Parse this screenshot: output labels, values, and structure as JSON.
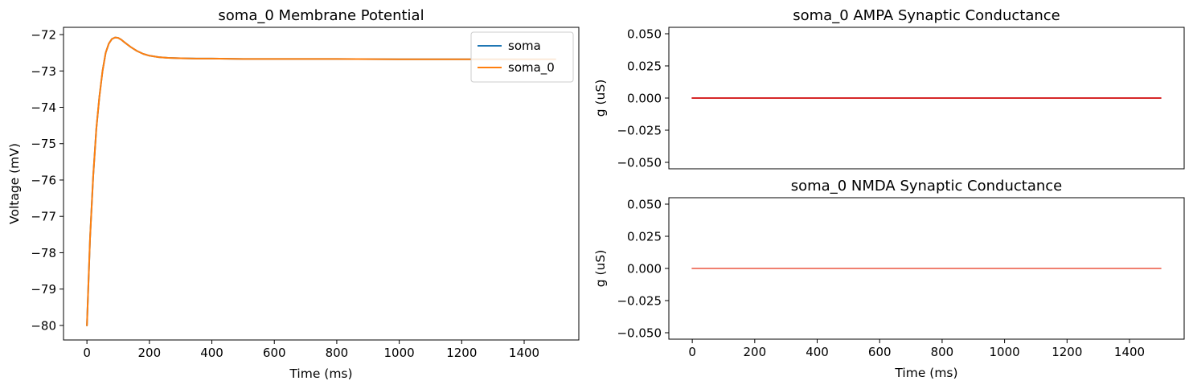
{
  "chart_data": [
    {
      "type": "line",
      "title": "soma_0 Membrane Potential",
      "xlabel": "Time (ms)",
      "ylabel": "Voltage (mV)",
      "xlim": [
        -75,
        1575
      ],
      "ylim": [
        -80.4,
        -71.8
      ],
      "xticks": [
        0,
        200,
        400,
        600,
        800,
        1000,
        1200,
        1400
      ],
      "yticks": [
        -80,
        -79,
        -78,
        -77,
        -76,
        -75,
        -74,
        -73,
        -72
      ],
      "legend": "top-right",
      "series": [
        {
          "name": "soma",
          "color": "#1f77b4",
          "x": [
            0,
            5,
            10,
            20,
            30,
            40,
            50,
            60,
            70,
            80,
            90,
            100,
            110,
            120,
            140,
            160,
            180,
            200,
            230,
            260,
            300,
            350,
            400,
            500,
            600,
            800,
            1000,
            1200,
            1400,
            1500
          ],
          "y": [
            -80.0,
            -78.8,
            -77.6,
            -75.9,
            -74.6,
            -73.7,
            -73.0,
            -72.5,
            -72.25,
            -72.12,
            -72.08,
            -72.09,
            -72.14,
            -72.21,
            -72.34,
            -72.45,
            -72.53,
            -72.58,
            -72.62,
            -72.64,
            -72.65,
            -72.66,
            -72.66,
            -72.67,
            -72.67,
            -72.67,
            -72.68,
            -72.68,
            -72.68,
            -72.68
          ]
        },
        {
          "name": "soma_0",
          "color": "#ff7f0e",
          "x": [
            0,
            5,
            10,
            20,
            30,
            40,
            50,
            60,
            70,
            80,
            90,
            100,
            110,
            120,
            140,
            160,
            180,
            200,
            230,
            260,
            300,
            350,
            400,
            500,
            600,
            800,
            1000,
            1200,
            1400,
            1500
          ],
          "y": [
            -80.0,
            -78.8,
            -77.6,
            -75.9,
            -74.6,
            -73.7,
            -73.0,
            -72.5,
            -72.25,
            -72.12,
            -72.08,
            -72.09,
            -72.14,
            -72.21,
            -72.34,
            -72.45,
            -72.53,
            -72.58,
            -72.62,
            -72.64,
            -72.65,
            -72.66,
            -72.66,
            -72.67,
            -72.67,
            -72.67,
            -72.68,
            -72.68,
            -72.68,
            -72.68
          ]
        }
      ]
    },
    {
      "type": "line",
      "title": "soma_0 AMPA Synaptic Conductance",
      "xlabel": "",
      "ylabel": "g (uS)",
      "xlim": [
        -75,
        1575
      ],
      "ylim": [
        -0.055,
        0.055
      ],
      "xticks": [],
      "yticks": [
        0.05,
        0.025,
        0.0,
        -0.025,
        -0.05
      ],
      "ytick_labels": [
        "0.050",
        "0.025",
        "0.000",
        "−0.025",
        "−0.050"
      ],
      "series": [
        {
          "color": "#d62728",
          "x": [
            0,
            1500
          ],
          "y": [
            0,
            0
          ]
        }
      ]
    },
    {
      "type": "line",
      "title": "soma_0 NMDA Synaptic Conductance",
      "xlabel": "Time (ms)",
      "ylabel": "g (uS)",
      "xlim": [
        -75,
        1575
      ],
      "ylim": [
        -0.055,
        0.055
      ],
      "xticks": [
        0,
        200,
        400,
        600,
        800,
        1000,
        1200,
        1400
      ],
      "yticks": [
        0.05,
        0.025,
        0.0,
        -0.025,
        -0.05
      ],
      "ytick_labels": [
        "0.050",
        "0.025",
        "0.000",
        "−0.025",
        "−0.050"
      ],
      "series": [
        {
          "color": "#f08070",
          "x": [
            0,
            1500
          ],
          "y": [
            0,
            0
          ]
        }
      ]
    }
  ]
}
